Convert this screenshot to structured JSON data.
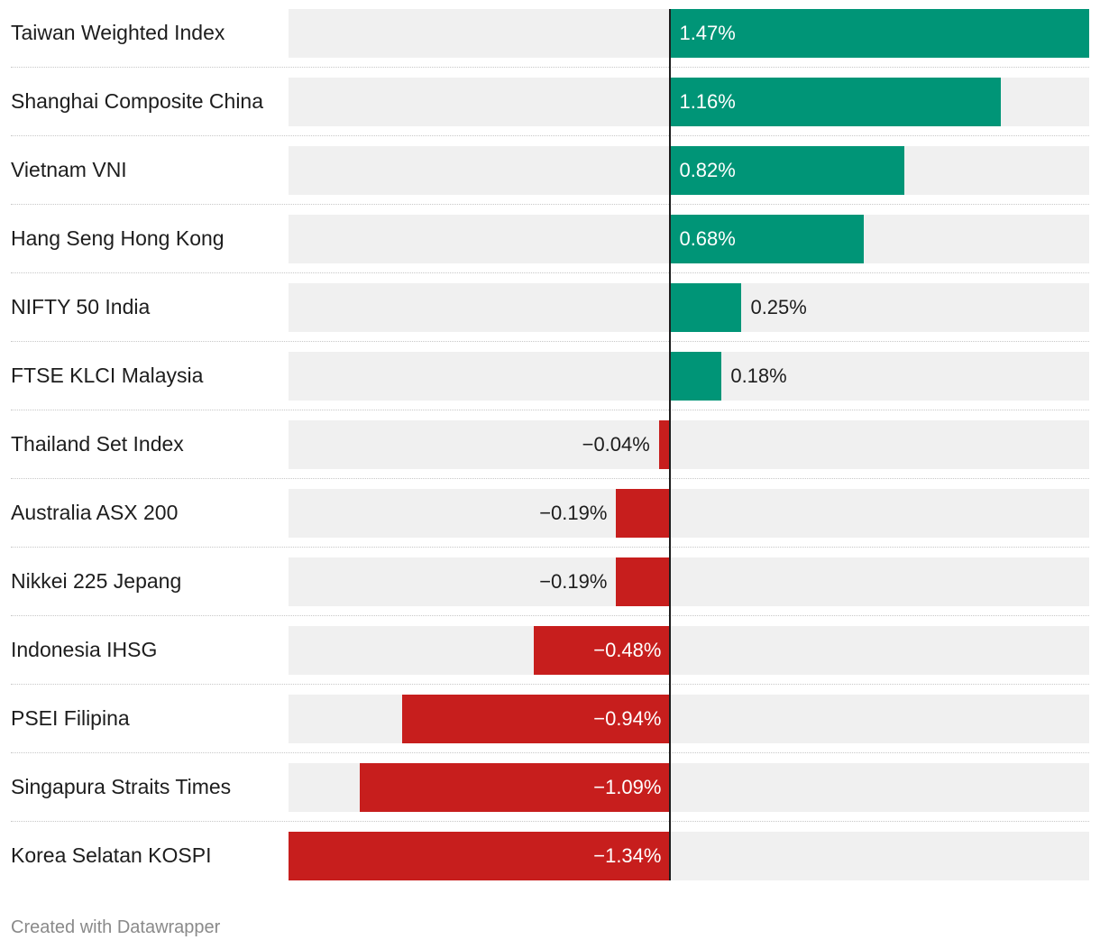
{
  "chart_data": {
    "type": "bar",
    "orientation": "horizontal",
    "categories": [
      "Taiwan Weighted Index",
      "Shanghai Composite China",
      "Vietnam VNI",
      "Hang Seng Hong Kong",
      "NIFTY 50 India",
      "FTSE KLCI Malaysia",
      "Thailand Set Index",
      "Australia ASX 200",
      "Nikkei 225 Jepang",
      "Indonesia IHSG",
      "PSEI Filipina",
      "Singapura Straits Times",
      "Korea Selatan KOSPI"
    ],
    "values": [
      1.47,
      1.16,
      0.82,
      0.68,
      0.25,
      0.18,
      -0.04,
      -0.19,
      -0.19,
      -0.48,
      -0.94,
      -1.09,
      -1.34
    ],
    "value_labels": [
      "1.47%",
      "1.16%",
      "0.82%",
      "0.68%",
      "0.25%",
      "0.18%",
      "−0.04%",
      "−0.19%",
      "−0.19%",
      "−0.48%",
      "−0.94%",
      "−1.09%",
      "−1.34%"
    ],
    "xlim": [
      -1.34,
      1.47
    ],
    "colors": {
      "positive": "#009577",
      "negative": "#c71e1d",
      "track": "#f0f0f0"
    }
  },
  "footer": {
    "credit": "Created with Datawrapper"
  }
}
